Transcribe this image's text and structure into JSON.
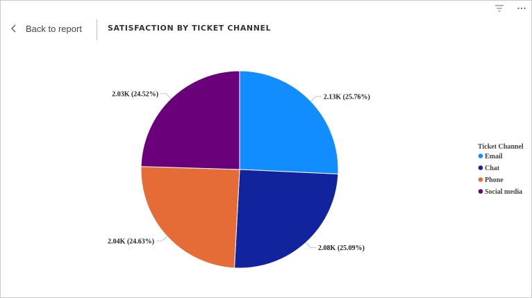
{
  "header": {
    "back_label": "Back to report",
    "title": "SATISFACTION BY TICKET CHANNEL"
  },
  "toolbar": {
    "filter_icon": "filter-lines-icon",
    "more_icon": "more-options-icon"
  },
  "chart_data": {
    "type": "pie",
    "legend_title": "Ticket Channel",
    "legend_position": "right",
    "slices": [
      {
        "name": "Email",
        "value": 2130,
        "percent": 25.76,
        "label": "2.13K (25.76%)",
        "color": "#118DFF"
      },
      {
        "name": "Chat",
        "value": 2080,
        "percent": 25.09,
        "label": "2.08K (25.09%)",
        "color": "#12239E"
      },
      {
        "name": "Phone",
        "value": 2040,
        "percent": 24.63,
        "label": "2.04K (24.63%)",
        "color": "#E66C37"
      },
      {
        "name": "Social media",
        "value": 2030,
        "percent": 24.52,
        "label": "2.03K (24.52%)",
        "color": "#6B007B"
      }
    ]
  }
}
